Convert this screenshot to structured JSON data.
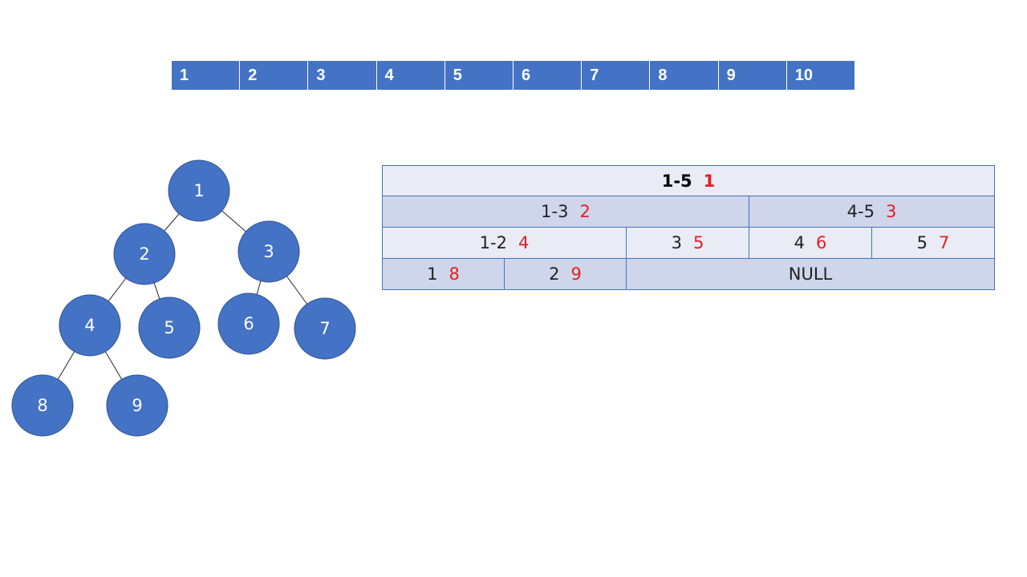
{
  "array": [
    "1",
    "2",
    "3",
    "4",
    "5",
    "6",
    "7",
    "8",
    "9",
    "10"
  ],
  "tree": {
    "nodes": [
      "1",
      "2",
      "3",
      "4",
      "5",
      "6",
      "7",
      "8",
      "9"
    ]
  },
  "table": {
    "rows": [
      [
        {
          "range": "1-5",
          "index": "1"
        }
      ],
      [
        {
          "range": "1-3",
          "index": "2"
        },
        {
          "range": "4-5",
          "index": "3"
        }
      ],
      [
        {
          "range": "1-2",
          "index": "4"
        },
        {
          "range": "3",
          "index": "5"
        },
        {
          "range": "4",
          "index": "6"
        },
        {
          "range": "5",
          "index": "7"
        }
      ],
      [
        {
          "range": "1",
          "index": "8"
        },
        {
          "range": "2",
          "index": "9"
        },
        {
          "range": "NULL"
        }
      ]
    ]
  }
}
